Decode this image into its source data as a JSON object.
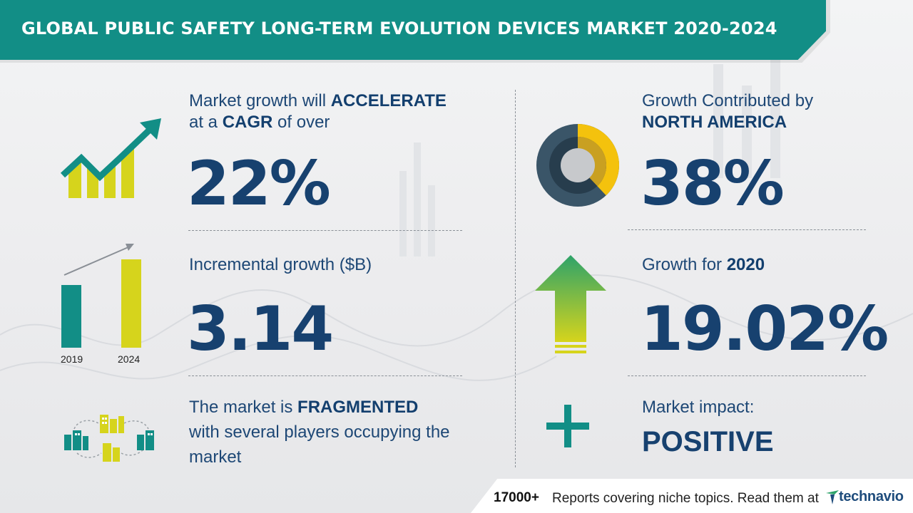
{
  "header": {
    "title": "GLOBAL PUBLIC SAFETY LONG-TERM EVOLUTION DEVICES MARKET 2020-2024"
  },
  "left": {
    "cagr": {
      "line1_pre": "Market growth will",
      "line1_bold": "ACCELERATE",
      "line2_pre": "at a",
      "line2_bold": "CAGR",
      "line2_post": "of over",
      "value": "22%"
    },
    "incremental": {
      "label": "Incremental growth ($B)",
      "value": "3.14",
      "year_start": "2019",
      "year_end": "2024"
    },
    "structure": {
      "line1_pre": "The market is",
      "line1_bold": "FRAGMENTED",
      "line2": "with several players occupying the",
      "line3": "market"
    }
  },
  "right": {
    "region": {
      "line1": "Growth Contributed by",
      "line2_bold": "NORTH AMERICA",
      "value": "38%",
      "share": 0.38
    },
    "yoy": {
      "label_pre": "Growth for",
      "label_bold": "2020",
      "value": "19.02%"
    },
    "impact": {
      "label": "Market impact:",
      "value": "POSITIVE"
    }
  },
  "footer": {
    "count": "17000+",
    "text": "Reports covering niche topics. Read them at",
    "brand": "technavio"
  },
  "colors": {
    "teal": "#128e86",
    "navy": "#17416f",
    "yellow": "#d6d41c",
    "gold": "#f4c20d",
    "dark_slate": "#3a5568",
    "green": "#2ea36a"
  },
  "icons": {
    "cagr": "growth-chart-arrow-icon",
    "incremental": "bar-comparison-icon",
    "structure": "buildings-network-icon",
    "region": "donut-chart-icon",
    "yoy": "up-arrow-icon",
    "impact": "plus-icon"
  }
}
